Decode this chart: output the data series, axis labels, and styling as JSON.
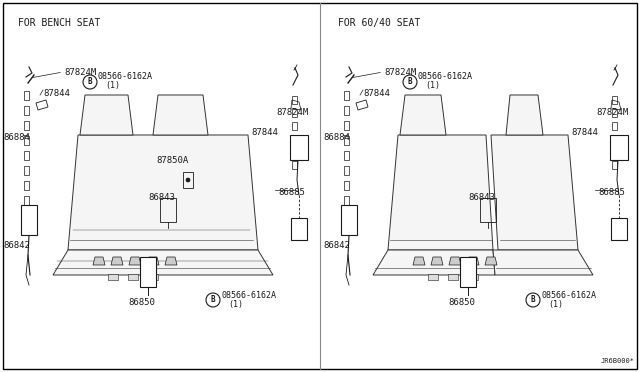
{
  "background_color": "#ffffff",
  "border_color": "#000000",
  "line_color": "#1a1a1a",
  "text_color": "#1a1a1a",
  "left_label": "FOR BENCH SEAT",
  "right_label": "FOR 60/40 SEAT",
  "watermark": "JR6B000*",
  "fig_width": 6.4,
  "fig_height": 3.72,
  "dpi": 100,
  "label_fontsize": 6.5,
  "title_fontsize": 7.0,
  "seat_fill": "#f5f5f5",
  "seat_edge": "#333333"
}
